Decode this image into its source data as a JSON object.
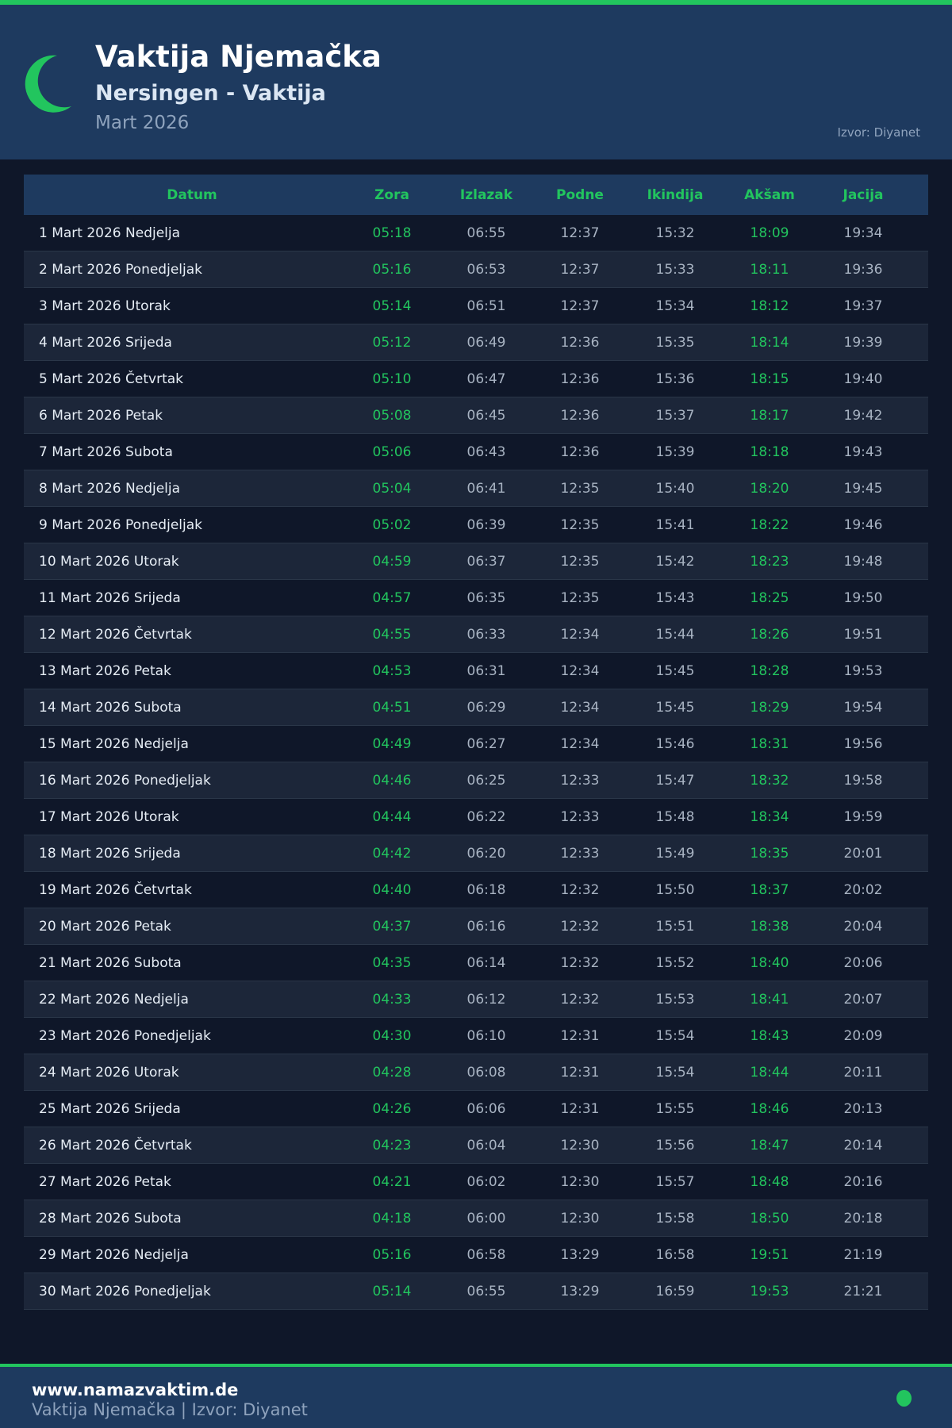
{
  "header": {
    "title": "Vaktija Njemačka",
    "subtitle": "Nersingen - Vaktija",
    "month": "Mart 2026",
    "source": "Izvor: Diyanet",
    "icon": "crescent-moon-icon"
  },
  "colors": {
    "accent": "#22c55e",
    "header_bg": "#1e3a5f",
    "page_bg": "#0f1729"
  },
  "table": {
    "columns": [
      "Datum",
      "Zora",
      "Izlazak",
      "Podne",
      "Ikindija",
      "Akšam",
      "Jacija"
    ],
    "rows": [
      [
        "1 Mart 2026 Nedjelja",
        "05:18",
        "06:55",
        "12:37",
        "15:32",
        "18:09",
        "19:34"
      ],
      [
        "2 Mart 2026 Ponedjeljak",
        "05:16",
        "06:53",
        "12:37",
        "15:33",
        "18:11",
        "19:36"
      ],
      [
        "3 Mart 2026 Utorak",
        "05:14",
        "06:51",
        "12:37",
        "15:34",
        "18:12",
        "19:37"
      ],
      [
        "4 Mart 2026 Srijeda",
        "05:12",
        "06:49",
        "12:36",
        "15:35",
        "18:14",
        "19:39"
      ],
      [
        "5 Mart 2026 Četvrtak",
        "05:10",
        "06:47",
        "12:36",
        "15:36",
        "18:15",
        "19:40"
      ],
      [
        "6 Mart 2026 Petak",
        "05:08",
        "06:45",
        "12:36",
        "15:37",
        "18:17",
        "19:42"
      ],
      [
        "7 Mart 2026 Subota",
        "05:06",
        "06:43",
        "12:36",
        "15:39",
        "18:18",
        "19:43"
      ],
      [
        "8 Mart 2026 Nedjelja",
        "05:04",
        "06:41",
        "12:35",
        "15:40",
        "18:20",
        "19:45"
      ],
      [
        "9 Mart 2026 Ponedjeljak",
        "05:02",
        "06:39",
        "12:35",
        "15:41",
        "18:22",
        "19:46"
      ],
      [
        "10 Mart 2026 Utorak",
        "04:59",
        "06:37",
        "12:35",
        "15:42",
        "18:23",
        "19:48"
      ],
      [
        "11 Mart 2026 Srijeda",
        "04:57",
        "06:35",
        "12:35",
        "15:43",
        "18:25",
        "19:50"
      ],
      [
        "12 Mart 2026 Četvrtak",
        "04:55",
        "06:33",
        "12:34",
        "15:44",
        "18:26",
        "19:51"
      ],
      [
        "13 Mart 2026 Petak",
        "04:53",
        "06:31",
        "12:34",
        "15:45",
        "18:28",
        "19:53"
      ],
      [
        "14 Mart 2026 Subota",
        "04:51",
        "06:29",
        "12:34",
        "15:45",
        "18:29",
        "19:54"
      ],
      [
        "15 Mart 2026 Nedjelja",
        "04:49",
        "06:27",
        "12:34",
        "15:46",
        "18:31",
        "19:56"
      ],
      [
        "16 Mart 2026 Ponedjeljak",
        "04:46",
        "06:25",
        "12:33",
        "15:47",
        "18:32",
        "19:58"
      ],
      [
        "17 Mart 2026 Utorak",
        "04:44",
        "06:22",
        "12:33",
        "15:48",
        "18:34",
        "19:59"
      ],
      [
        "18 Mart 2026 Srijeda",
        "04:42",
        "06:20",
        "12:33",
        "15:49",
        "18:35",
        "20:01"
      ],
      [
        "19 Mart 2026 Četvrtak",
        "04:40",
        "06:18",
        "12:32",
        "15:50",
        "18:37",
        "20:02"
      ],
      [
        "20 Mart 2026 Petak",
        "04:37",
        "06:16",
        "12:32",
        "15:51",
        "18:38",
        "20:04"
      ],
      [
        "21 Mart 2026 Subota",
        "04:35",
        "06:14",
        "12:32",
        "15:52",
        "18:40",
        "20:06"
      ],
      [
        "22 Mart 2026 Nedjelja",
        "04:33",
        "06:12",
        "12:32",
        "15:53",
        "18:41",
        "20:07"
      ],
      [
        "23 Mart 2026 Ponedjeljak",
        "04:30",
        "06:10",
        "12:31",
        "15:54",
        "18:43",
        "20:09"
      ],
      [
        "24 Mart 2026 Utorak",
        "04:28",
        "06:08",
        "12:31",
        "15:54",
        "18:44",
        "20:11"
      ],
      [
        "25 Mart 2026 Srijeda",
        "04:26",
        "06:06",
        "12:31",
        "15:55",
        "18:46",
        "20:13"
      ],
      [
        "26 Mart 2026 Četvrtak",
        "04:23",
        "06:04",
        "12:30",
        "15:56",
        "18:47",
        "20:14"
      ],
      [
        "27 Mart 2026 Petak",
        "04:21",
        "06:02",
        "12:30",
        "15:57",
        "18:48",
        "20:16"
      ],
      [
        "28 Mart 2026 Subota",
        "04:18",
        "06:00",
        "12:30",
        "15:58",
        "18:50",
        "20:18"
      ],
      [
        "29 Mart 2026 Nedjelja",
        "05:16",
        "06:58",
        "13:29",
        "16:58",
        "19:51",
        "21:19"
      ],
      [
        "30 Mart 2026 Ponedjeljak",
        "05:14",
        "06:55",
        "13:29",
        "16:59",
        "19:53",
        "21:21"
      ]
    ]
  },
  "footer": {
    "url": "www.namazvaktim.de",
    "subtitle": "Vaktija Njemačka | Izvor: Diyanet"
  }
}
